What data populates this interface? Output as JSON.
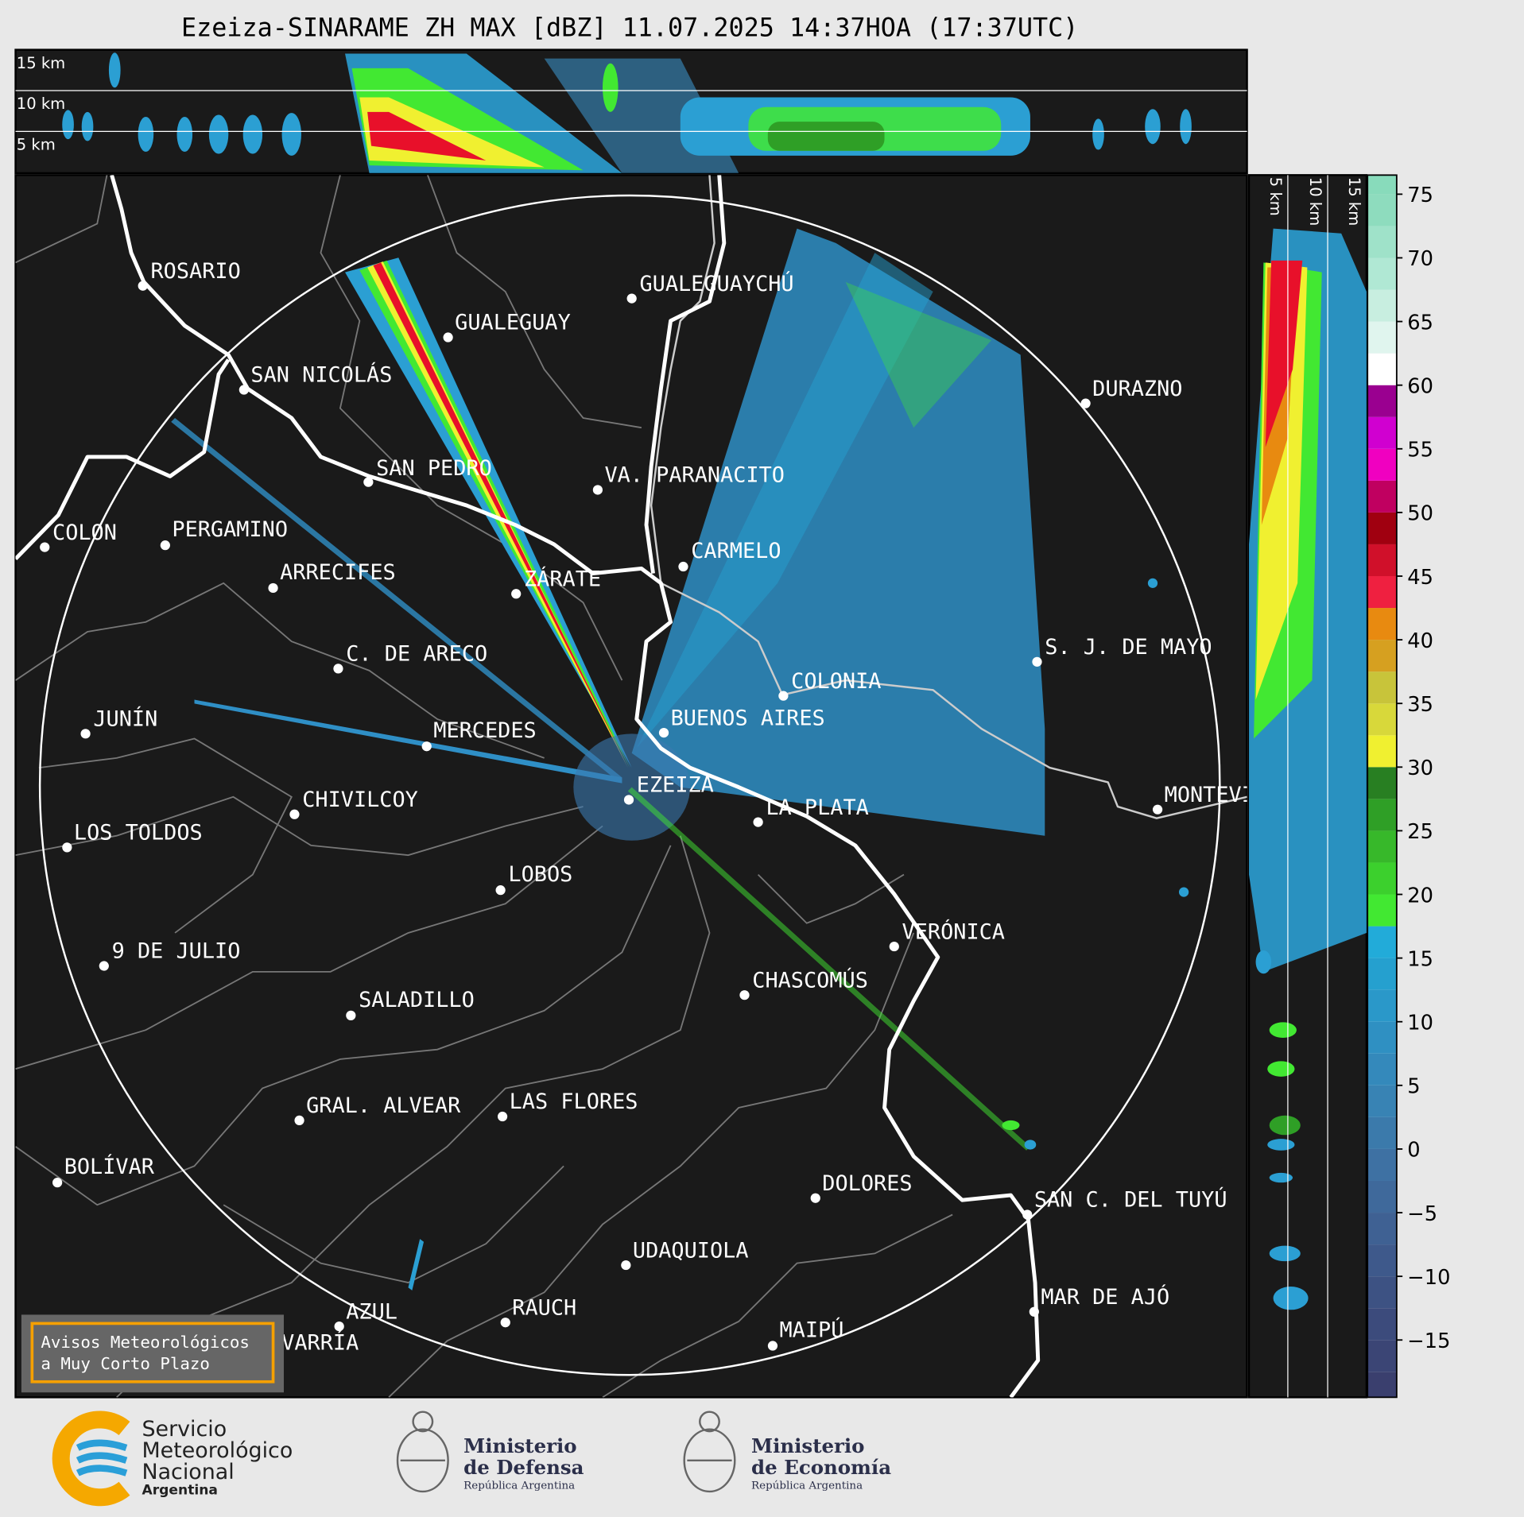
{
  "header": {
    "title": "Ezeiza-SINARAME ZH MAX [dBZ] 11.07.2025 14:37HOA (17:37UTC)"
  },
  "top_panel": {
    "height_labels": [
      "15 km",
      "10 km",
      "5 km"
    ]
  },
  "side_panel": {
    "height_labels": [
      "5 km",
      "10 km",
      "15 km"
    ]
  },
  "map": {
    "cities": [
      "ROSARIO",
      "GUALEGUAYCHÚ",
      "GUALEGUAY",
      "SAN NICOLÁS",
      "DURAZNO",
      "SAN PEDRO",
      "VA. PARANACITO",
      "COLON",
      "PERGAMINO",
      "CARMELO",
      "ARRECIFES",
      "ZÁRATE",
      "S. J. DE MAYO",
      "C. DE ARECO",
      "COLONIA",
      "BUENOS AIRES",
      "JUNÍN",
      "MERCEDES",
      "EZEIZA",
      "CHIVILCOY",
      "MONTEVIDEO",
      "LA PLATA",
      "LOS TOLDOS",
      "LOBOS",
      "VERÓNICA",
      "9 DE JULIO",
      "CHASCOMÚS",
      "SALADILLO",
      "GRAL. ALVEAR",
      "LAS FLORES",
      "BOLÍVAR",
      "DOLORES",
      "SAN C. DEL TUYÚ",
      "UDAQUIOLA",
      "MAR DE AJÓ",
      "AZUL",
      "RAUCH",
      "OLAVARRÍA",
      "MAIPÚ"
    ]
  },
  "colorbar": {
    "lim": [
      -19.5,
      76.5
    ],
    "ticks": [
      {
        "value": -15,
        "label": "−15"
      },
      {
        "value": -10,
        "label": "−10"
      },
      {
        "value": -5,
        "label": "−5"
      },
      0,
      5,
      10,
      15,
      20,
      25,
      30,
      35,
      40,
      45,
      50,
      55,
      60,
      65,
      70,
      75
    ],
    "levels": [
      -20,
      -17.5,
      -15,
      -12.5,
      -10,
      -7.5,
      -5,
      -2.5,
      0,
      2.5,
      5,
      7.5,
      10,
      12.5,
      15,
      17.5,
      20,
      22.5,
      25,
      27.5,
      30,
      32.5,
      35,
      37.5,
      40,
      42.5,
      45,
      47.5,
      50,
      52.5,
      55,
      57.5,
      60,
      62.5,
      65,
      67.5,
      70,
      72.5,
      75,
      77.5
    ],
    "colors": [
      "#3a3f6e",
      "#3b4575",
      "#3c4b7c",
      "#3d5283",
      "#3e598b",
      "#3f6193",
      "#3f699b",
      "#3e71a3",
      "#3b7aab",
      "#3883b4",
      "#3489bb",
      "#2f90c2",
      "#2a98c9",
      "#25a0cf",
      "#22abd9",
      "#42e832",
      "#3cd02d",
      "#37b82a",
      "#2f9f26",
      "#287f22",
      "#f0f030",
      "#d8d83a",
      "#c8c43a",
      "#d6a020",
      "#e88a10",
      "#ef2040",
      "#d0102a",
      "#a00010",
      "#c00060",
      "#f000c0",
      "#d000d0",
      "#9a0090",
      "#ffffff",
      "#e0f5ee",
      "#c8eee0",
      "#b0e8d4",
      "#9fe2c9",
      "#8edcbe",
      "#88dbbb"
    ]
  },
  "notice": {
    "lines": [
      "Avisos Meteorológicos",
      "a Muy Corto Plazo"
    ]
  },
  "footer": {
    "smn": [
      "Servicio",
      "Meteorológico",
      "Nacional",
      "Argentina"
    ],
    "defensa": [
      "Ministerio",
      "de Defensa",
      "República Argentina"
    ],
    "economia": [
      "Ministerio",
      "de Economía",
      "República Argentina"
    ]
  }
}
